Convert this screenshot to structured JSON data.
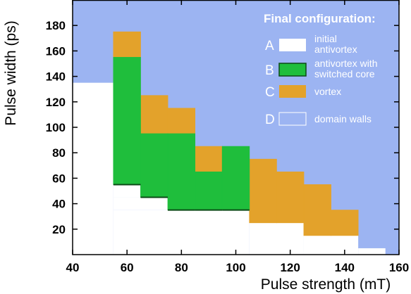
{
  "chart_data": {
    "type": "heatmap",
    "title": "",
    "xlabel": "Pulse strength (mT)",
    "ylabel": "Pulse width (ps)",
    "xlim": [
      40,
      160
    ],
    "ylim": [
      0,
      200
    ],
    "xticks": [
      "40",
      "60",
      "80",
      "100",
      "120",
      "140",
      "160"
    ],
    "yticks": [
      "20",
      "40",
      "60",
      "80",
      "100",
      "120",
      "140",
      "160",
      "180"
    ],
    "legend": {
      "title": "Final configuration:",
      "position": "top-right",
      "entries": [
        {
          "key": "A",
          "label_lines": [
            "initial",
            "antivortex"
          ],
          "color": "#ffffff"
        },
        {
          "key": "B",
          "label_lines": [
            "antivortex with",
            "switched core"
          ],
          "color": "#1fbe3c"
        },
        {
          "key": "C",
          "label_lines": [
            "vortex"
          ],
          "color": "#e3a22b"
        },
        {
          "key": "D",
          "label_lines": [
            "domain walls"
          ],
          "color": "#9cb4f2"
        }
      ]
    },
    "background_state": "D",
    "regions": [
      {
        "state": "A",
        "x": [
          40,
          55
        ],
        "y": [
          0,
          135
        ]
      },
      {
        "state": "A",
        "x": [
          55,
          105
        ],
        "y": [
          0,
          35
        ]
      },
      {
        "state": "A",
        "x": [
          55,
          75
        ],
        "y": [
          35,
          45
        ]
      },
      {
        "state": "A",
        "x": [
          55,
          65
        ],
        "y": [
          45,
          55
        ]
      },
      {
        "state": "A",
        "x": [
          105,
          125
        ],
        "y": [
          0,
          25
        ]
      },
      {
        "state": "A",
        "x": [
          125,
          145
        ],
        "y": [
          0,
          15
        ]
      },
      {
        "state": "A",
        "x": [
          145,
          155
        ],
        "y": [
          0,
          5
        ]
      },
      {
        "state": "C",
        "x": [
          55,
          65
        ],
        "y": [
          155,
          175
        ]
      },
      {
        "state": "C",
        "x": [
          65,
          75
        ],
        "y": [
          95,
          125
        ]
      },
      {
        "state": "C",
        "x": [
          75,
          85
        ],
        "y": [
          95,
          115
        ]
      },
      {
        "state": "C",
        "x": [
          85,
          95
        ],
        "y": [
          65,
          85
        ]
      },
      {
        "state": "C",
        "x": [
          105,
          115
        ],
        "y": [
          25,
          75
        ]
      },
      {
        "state": "C",
        "x": [
          115,
          125
        ],
        "y": [
          25,
          65
        ]
      },
      {
        "state": "C",
        "x": [
          125,
          135
        ],
        "y": [
          15,
          55
        ]
      },
      {
        "state": "C",
        "x": [
          135,
          145
        ],
        "y": [
          15,
          35
        ]
      },
      {
        "state": "B",
        "x": [
          55,
          65
        ],
        "y": [
          55,
          155
        ]
      },
      {
        "state": "B",
        "x": [
          65,
          75
        ],
        "y": [
          45,
          95
        ]
      },
      {
        "state": "B",
        "x": [
          75,
          85
        ],
        "y": [
          35,
          95
        ]
      },
      {
        "state": "B",
        "x": [
          85,
          95
        ],
        "y": [
          35,
          65
        ]
      },
      {
        "state": "B",
        "x": [
          95,
          105
        ],
        "y": [
          35,
          85
        ]
      }
    ]
  }
}
